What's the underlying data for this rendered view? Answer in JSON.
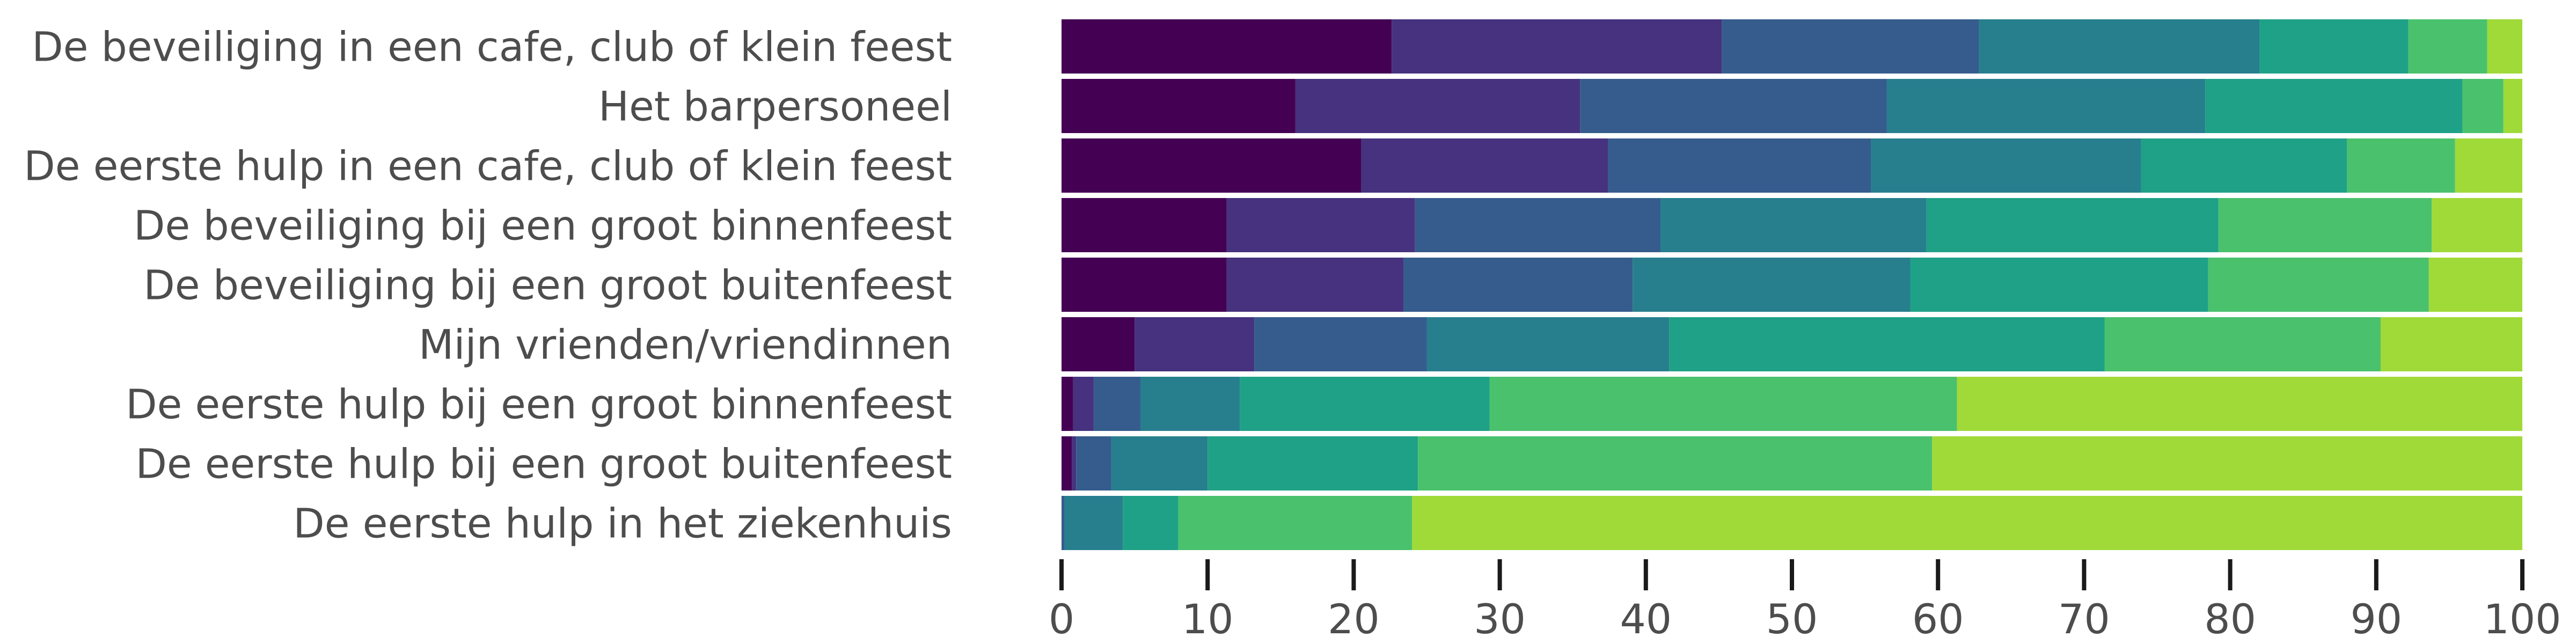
{
  "chart_data": {
    "type": "bar",
    "orientation": "horizontal",
    "stacked": true,
    "categories": [
      "De beveiliging in een cafe, club of klein feest",
      "Het barpersoneel",
      "De eerste hulp in een cafe, club of klein feest",
      "De beveiliging bij een groot binnenfeest",
      "De beveiliging bij een groot buitenfeest",
      "Mijn vrienden/vriendinnen",
      "De eerste hulp bij een groot binnenfeest",
      "De eerste hulp bij een groot buitenfeest",
      "De eerste hulp in het ziekenhuis"
    ],
    "series": [
      {
        "color": "#440154",
        "values": [
          22.6,
          16.0,
          20.5,
          11.3,
          11.3,
          5.0,
          0.8,
          0.7,
          0.0
        ]
      },
      {
        "color": "#46327e",
        "values": [
          22.6,
          19.5,
          16.9,
          12.9,
          12.1,
          8.2,
          1.4,
          0.3,
          0.0
        ]
      },
      {
        "color": "#365c8d",
        "values": [
          17.6,
          21.0,
          18.0,
          16.8,
          15.7,
          11.8,
          3.2,
          2.4,
          0.2
        ]
      },
      {
        "color": "#277f8e",
        "values": [
          19.2,
          21.8,
          18.5,
          18.2,
          19.0,
          16.6,
          6.8,
          6.6,
          4.0
        ]
      },
      {
        "color": "#1fa187",
        "values": [
          10.2,
          17.6,
          14.1,
          20.0,
          20.4,
          29.8,
          17.1,
          14.4,
          3.8
        ]
      },
      {
        "color": "#4ac16d",
        "values": [
          5.4,
          2.8,
          7.4,
          14.6,
          15.1,
          18.9,
          32.0,
          35.2,
          16.0
        ]
      },
      {
        "color": "#a0da39",
        "values": [
          2.4,
          1.3,
          4.6,
          6.2,
          6.4,
          9.7,
          38.7,
          40.4,
          76.0
        ]
      }
    ],
    "xlim": [
      0,
      100
    ],
    "xticks": [
      0,
      10,
      20,
      30,
      40,
      50,
      60,
      70,
      80,
      90,
      100
    ],
    "grid": false,
    "legend": "none",
    "title": "",
    "xlabel": "",
    "ylabel": ""
  }
}
